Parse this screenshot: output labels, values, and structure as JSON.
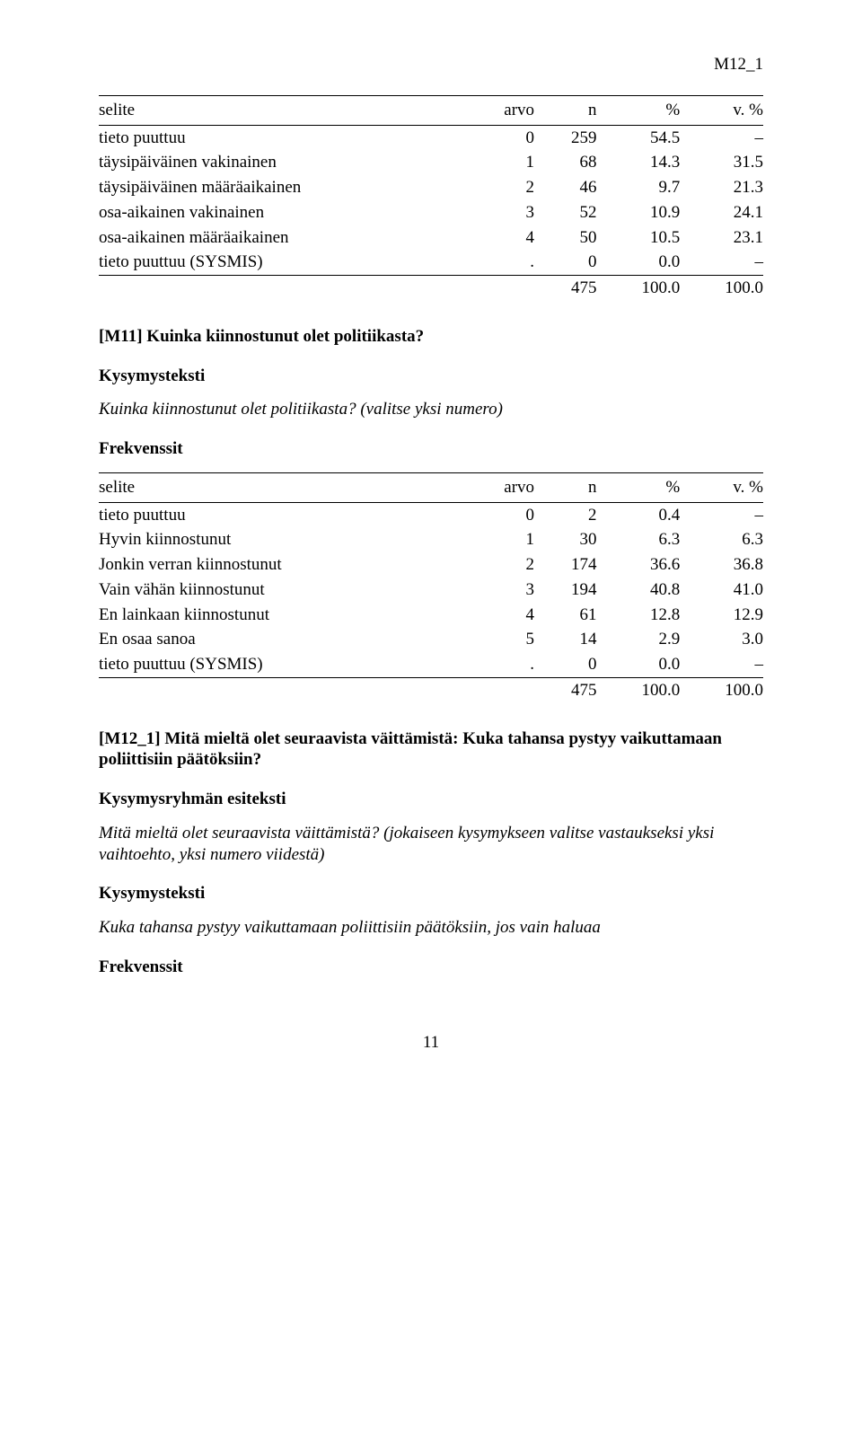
{
  "header_code": "M12_1",
  "table1": {
    "headers": [
      "selite",
      "arvo",
      "n",
      "%",
      "v. %"
    ],
    "rows": [
      {
        "label": "tieto puuttuu",
        "arvo": "0",
        "n": "259",
        "pct": "54.5",
        "vpct": "–"
      },
      {
        "label": "täysipäiväinen vakinainen",
        "arvo": "1",
        "n": "68",
        "pct": "14.3",
        "vpct": "31.5"
      },
      {
        "label": "täysipäiväinen määräaikainen",
        "arvo": "2",
        "n": "46",
        "pct": "9.7",
        "vpct": "21.3"
      },
      {
        "label": "osa-aikainen vakinainen",
        "arvo": "3",
        "n": "52",
        "pct": "10.9",
        "vpct": "24.1"
      },
      {
        "label": "osa-aikainen määräaikainen",
        "arvo": "4",
        "n": "50",
        "pct": "10.5",
        "vpct": "23.1"
      },
      {
        "label": "tieto puuttuu (SYSMIS)",
        "arvo": ".",
        "n": "0",
        "pct": "0.0",
        "vpct": "–"
      }
    ],
    "total": {
      "n": "475",
      "pct": "100.0",
      "vpct": "100.0"
    }
  },
  "m11": {
    "title": "[M11] Kuinka kiinnostunut olet politiikasta?",
    "kysymysteksti_label": "Kysymysteksti",
    "kysymysteksti": "Kuinka kiinnostunut olet politiikasta? (valitse yksi numero)",
    "frekvenssit_label": "Frekvenssit"
  },
  "table2": {
    "headers": [
      "selite",
      "arvo",
      "n",
      "%",
      "v. %"
    ],
    "rows": [
      {
        "label": "tieto puuttuu",
        "arvo": "0",
        "n": "2",
        "pct": "0.4",
        "vpct": "–"
      },
      {
        "label": "Hyvin kiinnostunut",
        "arvo": "1",
        "n": "30",
        "pct": "6.3",
        "vpct": "6.3"
      },
      {
        "label": "Jonkin verran kiinnostunut",
        "arvo": "2",
        "n": "174",
        "pct": "36.6",
        "vpct": "36.8"
      },
      {
        "label": "Vain vähän kiinnostunut",
        "arvo": "3",
        "n": "194",
        "pct": "40.8",
        "vpct": "41.0"
      },
      {
        "label": "En lainkaan kiinnostunut",
        "arvo": "4",
        "n": "61",
        "pct": "12.8",
        "vpct": "12.9"
      },
      {
        "label": "En osaa sanoa",
        "arvo": "5",
        "n": "14",
        "pct": "2.9",
        "vpct": "3.0"
      },
      {
        "label": "tieto puuttuu (SYSMIS)",
        "arvo": ".",
        "n": "0",
        "pct": "0.0",
        "vpct": "–"
      }
    ],
    "total": {
      "n": "475",
      "pct": "100.0",
      "vpct": "100.0"
    }
  },
  "m12": {
    "title": "[M12_1] Mitä mieltä olet seuraavista väittämistä: Kuka tahansa pystyy vaikuttamaan poliittisiin päätöksiin?",
    "esiteksti_label": "Kysymysryhmän esiteksti",
    "esiteksti": "Mitä mieltä olet seuraavista väittämistä? (jokaiseen kysymykseen valitse vastaukseksi yksi vaihtoehto, yksi numero viidestä)",
    "kysymysteksti_label": "Kysymysteksti",
    "kysymysteksti": "Kuka tahansa pystyy vaikuttamaan poliittisiin päätöksiin, jos vain haluaa",
    "frekvenssit_label": "Frekvenssit"
  },
  "page_number": "11"
}
